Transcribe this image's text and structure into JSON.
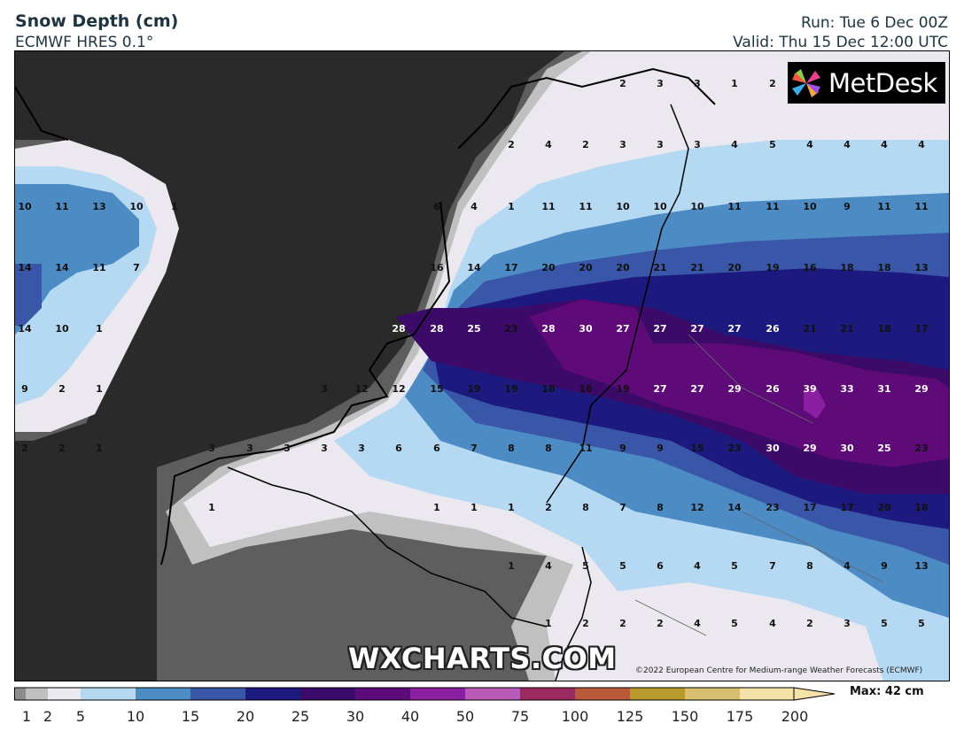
{
  "header": {
    "title": "Snow Depth (cm)",
    "model": "ECMWF HRES 0.1°",
    "run": "Run: Tue 6 Dec 00Z",
    "valid": "Valid: Thu 15 Dec 12:00 UTC"
  },
  "logo": {
    "text": "MetDesk",
    "icon": "pinwheel-icon"
  },
  "watermark": "WXCHARTS.COM",
  "copyright": "©2022 European Centre for Medium-range Weather Forecasts (ECMWF)",
  "colorbar": {
    "max_label": "Max: 42 cm",
    "ticks": [
      "1",
      "2",
      "5",
      "10",
      "15",
      "20",
      "25",
      "30",
      "40",
      "50",
      "75",
      "100",
      "125",
      "150",
      "175",
      "200"
    ],
    "colors": [
      "#8d8d8d",
      "#c0c0c0",
      "#ece8ef",
      "#b6d9f3",
      "#4c8bc4",
      "#3a56a8",
      "#1c1a7e",
      "#3c0a68",
      "#5e0a78",
      "#8a1fa2",
      "#b85ab8",
      "#9b2a60",
      "#b85a3a",
      "#b89a2a",
      "#d8c070",
      "#f5e2a8"
    ],
    "values": [
      1,
      2,
      5,
      10,
      15,
      20,
      25,
      30,
      40,
      50,
      75,
      100,
      125,
      150,
      175,
      200
    ]
  },
  "palette": {
    "sea": "#2a2a2a",
    "land_bg": "#5e5e5e"
  },
  "map_values": [
    {
      "row": 1,
      "values": [
        "2",
        "3",
        "3",
        "1",
        "2"
      ]
    },
    {
      "row": 2,
      "values": [
        "2",
        "4",
        "2",
        "3",
        "3",
        "3",
        "4",
        "5",
        "4",
        "4",
        "4",
        "4"
      ]
    },
    {
      "row": 3,
      "values": [
        "10",
        "11",
        "13",
        "10",
        "1",
        "6",
        "4",
        "1",
        "11",
        "11",
        "10",
        "10",
        "10",
        "11",
        "11",
        "10",
        "9",
        "11",
        "11"
      ]
    },
    {
      "row": 4,
      "values": [
        "14",
        "14",
        "11",
        "7",
        "16",
        "14",
        "17",
        "20",
        "20",
        "20",
        "21",
        "21",
        "20",
        "19",
        "16",
        "18",
        "18",
        "13"
      ]
    },
    {
      "row": 5,
      "values": [
        "14",
        "10",
        "1",
        "28",
        "28",
        "25",
        "23",
        "28",
        "30",
        "27",
        "27",
        "27",
        "27",
        "26",
        "21",
        "21",
        "18",
        "17"
      ]
    },
    {
      "row": 6,
      "values": [
        "9",
        "2",
        "1",
        "3",
        "12",
        "12",
        "15",
        "19",
        "19",
        "18",
        "16",
        "19",
        "27",
        "27",
        "29",
        "26",
        "39",
        "33",
        "31",
        "29"
      ]
    },
    {
      "row": 7,
      "values": [
        "2",
        "2",
        "1",
        "3",
        "3",
        "3",
        "3",
        "3",
        "6",
        "6",
        "7",
        "8",
        "8",
        "11",
        "9",
        "9",
        "15",
        "23",
        "30",
        "29",
        "30",
        "25",
        "23"
      ]
    },
    {
      "row": 8,
      "values": [
        "1",
        "1",
        "1",
        "1",
        "2",
        "8",
        "7",
        "8",
        "12",
        "14",
        "23",
        "17",
        "17",
        "20",
        "18"
      ]
    },
    {
      "row": 9,
      "values": [
        "1",
        "4",
        "5",
        "5",
        "6",
        "4",
        "5",
        "7",
        "8",
        "4",
        "9",
        "13"
      ]
    },
    {
      "row": 10,
      "values": [
        "1",
        "2",
        "2",
        "2",
        "4",
        "5",
        "4",
        "2",
        "3",
        "5",
        "5"
      ]
    }
  ]
}
